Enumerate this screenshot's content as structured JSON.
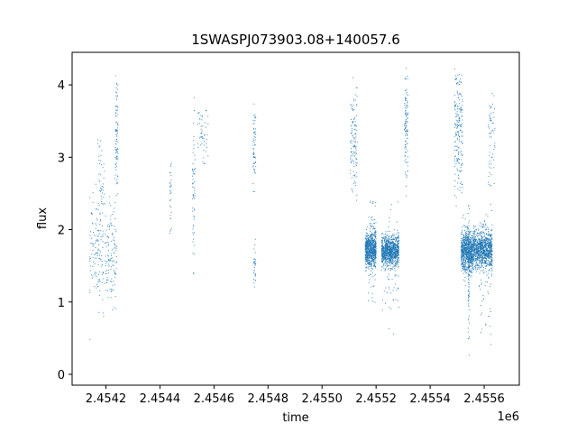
{
  "chart_data": {
    "type": "scatter",
    "title": "1SWASPJ073903.08+140057.6",
    "xlabel": "time",
    "ylabel": "flux",
    "x_offset_label": "1e6",
    "xlim": [
      2454075,
      2455730
    ],
    "ylim": [
      -0.15,
      4.45
    ],
    "x_ticks": [
      2454200,
      2454400,
      2454600,
      2454800,
      2455000,
      2455200,
      2455400,
      2455600
    ],
    "x_tick_labels": [
      "2.4542",
      "2.4544",
      "2.4546",
      "2.4548",
      "2.4550",
      "2.4552",
      "2.4554",
      "2.4556"
    ],
    "y_ticks": [
      0,
      1,
      2,
      3,
      4
    ],
    "y_tick_labels": [
      "0",
      "1",
      "2",
      "3",
      "4"
    ],
    "grid": false,
    "point_color": "#1f77b4",
    "clusters": [
      {
        "x": [
          2454140,
          2454240
        ],
        "y": [
          0.3,
          3.3
        ],
        "center": 1.7,
        "spread": 0.35,
        "n": 260
      },
      {
        "x": [
          2454170,
          2454195
        ],
        "y": [
          2.2,
          3.3
        ],
        "center": 2.6,
        "spread": 0.3,
        "n": 40
      },
      {
        "x": [
          2454235,
          2454245
        ],
        "y": [
          2.4,
          4.2
        ],
        "center": 3.3,
        "spread": 0.45,
        "n": 90
      },
      {
        "x": [
          2454437,
          2454443
        ],
        "y": [
          1.9,
          2.95
        ],
        "center": 2.5,
        "spread": 0.3,
        "n": 30
      },
      {
        "x": [
          2454520,
          2454530
        ],
        "y": [
          0.75,
          4.2
        ],
        "center": 2.5,
        "spread": 0.6,
        "n": 60
      },
      {
        "x": [
          2454540,
          2454580
        ],
        "y": [
          2.7,
          3.65
        ],
        "center": 3.3,
        "spread": 0.25,
        "n": 50
      },
      {
        "x": [
          2454745,
          2454755
        ],
        "y": [
          2.4,
          3.75
        ],
        "center": 3.1,
        "spread": 0.3,
        "n": 60
      },
      {
        "x": [
          2454745,
          2454755
        ],
        "y": [
          1.2,
          1.9
        ],
        "center": 1.5,
        "spread": 0.2,
        "n": 30
      },
      {
        "x": [
          2455105,
          2455130
        ],
        "y": [
          2.4,
          4.1
        ],
        "center": 3.2,
        "spread": 0.4,
        "n": 120
      },
      {
        "x": [
          2455160,
          2455200
        ],
        "y": [
          1.2,
          2.2
        ],
        "center": 1.72,
        "spread": 0.12,
        "n": 700
      },
      {
        "x": [
          2455170,
          2455200
        ],
        "y": [
          0.7,
          2.5
        ],
        "center": 1.7,
        "spread": 0.4,
        "n": 80
      },
      {
        "x": [
          2455220,
          2455285
        ],
        "y": [
          1.3,
          2.1
        ],
        "center": 1.7,
        "spread": 0.1,
        "n": 900
      },
      {
        "x": [
          2455220,
          2455285
        ],
        "y": [
          0.1,
          2.5
        ],
        "center": 1.6,
        "spread": 0.45,
        "n": 80
      },
      {
        "x": [
          2455305,
          2455318
        ],
        "y": [
          2.4,
          4.25
        ],
        "center": 3.4,
        "spread": 0.45,
        "n": 110
      },
      {
        "x": [
          2455490,
          2455520
        ],
        "y": [
          2.3,
          4.3
        ],
        "center": 3.3,
        "spread": 0.45,
        "n": 200
      },
      {
        "x": [
          2455515,
          2455560
        ],
        "y": [
          0.5,
          2.6
        ],
        "center": 1.7,
        "spread": 0.14,
        "n": 800
      },
      {
        "x": [
          2455540,
          2455545
        ],
        "y": [
          0.2,
          2.4
        ],
        "center": 1.4,
        "spread": 0.5,
        "n": 80
      },
      {
        "x": [
          2455560,
          2455630
        ],
        "y": [
          1.2,
          2.2
        ],
        "center": 1.72,
        "spread": 0.12,
        "n": 900
      },
      {
        "x": [
          2455580,
          2455630
        ],
        "y": [
          0.4,
          2.6
        ],
        "center": 1.5,
        "spread": 0.45,
        "n": 100
      },
      {
        "x": [
          2455615,
          2455640
        ],
        "y": [
          2.6,
          4.1
        ],
        "center": 3.2,
        "spread": 0.4,
        "n": 60
      }
    ]
  }
}
